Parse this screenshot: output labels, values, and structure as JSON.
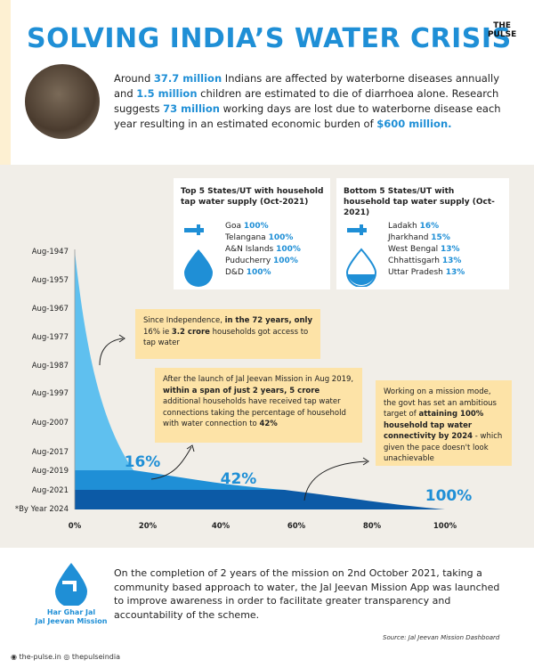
{
  "header": {
    "title": "SOLVING INDIA’S WATER CRISIS",
    "brand": [
      "THE",
      "PULSE"
    ]
  },
  "intro": [
    {
      "text": "Around "
    },
    {
      "text": "37.7 million",
      "hl": true
    },
    {
      "text": " Indians are affected by waterborne diseases annually and "
    },
    {
      "text": "1.5 million",
      "hl": true
    },
    {
      "text": " children are estimated to die of diarrhoea alone. Research suggests "
    },
    {
      "text": "73 million",
      "hl": true
    },
    {
      "text": " working days are lost due to waterborne disease each year resulting in an estimated economic burden of "
    },
    {
      "text": "$600 million.",
      "hl": true
    }
  ],
  "top_box": {
    "title": "Top 5 States/UT with household tap water supply (Oct-2021)",
    "items": [
      {
        "name": "Goa",
        "value": "100%"
      },
      {
        "name": "Telangana",
        "value": "100%"
      },
      {
        "name": "A&N Islands",
        "value": "100%"
      },
      {
        "name": "Puducherry",
        "value": "100%"
      },
      {
        "name": "D&D",
        "value": "100%"
      }
    ]
  },
  "bottom_box": {
    "title": "Bottom 5 States/UT with household tap water supply (Oct-2021)",
    "items": [
      {
        "name": "Ladakh",
        "value": "16%"
      },
      {
        "name": "Jharkhand",
        "value": "15%"
      },
      {
        "name": "West Bengal",
        "value": "13%"
      },
      {
        "name": "Chhattisgarh",
        "value": "13%"
      },
      {
        "name": "Uttar Pradesh",
        "value": "13%"
      }
    ]
  },
  "chart": {
    "y_labels": [
      "Aug-1947",
      "Aug-1957",
      "Aug-1967",
      "Aug-1977",
      "Aug-1987",
      "Aug-1997",
      "Aug-2007",
      "Aug-2017",
      "Aug-2019",
      "Aug-2021",
      "*By Year 2024"
    ],
    "x_labels": [
      "0%",
      "20%",
      "40%",
      "60%",
      "80%",
      "100%"
    ],
    "markers": [
      "16%",
      "42%",
      "100%"
    ]
  },
  "callouts": [
    [
      {
        "text": "Since Independence, "
      },
      {
        "text": "in the 72 years, only",
        "b": true
      },
      {
        "text": " 16% ie "
      },
      {
        "text": "3.2 crore",
        "b": true
      },
      {
        "text": " households got access to tap water"
      }
    ],
    [
      {
        "text": "After the launch of Jal Jeevan Mission in Aug 2019, "
      },
      {
        "text": "within a span of just 2 years, 5 crore",
        "b": true
      },
      {
        "text": " additional households have received tap water connections taking the percentage of household with water connection to "
      },
      {
        "text": "42%",
        "b": true
      }
    ],
    [
      {
        "text": "Working on a mission mode, the govt has set an ambitious target of "
      },
      {
        "text": "attaining 100% household tap water connectivity by 2024",
        "b": true
      },
      {
        "text": " - which given the pace doesn't look unachievable"
      }
    ]
  ],
  "footer": {
    "text": "On the completion of 2 years of the mission on 2nd October 2021, taking a community based approach to water, the Jal Jeevan Mission App was launched to improve awareness in order to facilitate greater transparency and accountability of the scheme.",
    "logo": [
      "Har Ghar Jal",
      "Jal Jeevan Mission"
    ],
    "source": "Source: Jal Jeevan Mission Dashboard",
    "social": [
      "the-pulse.in",
      "thepulseindia"
    ]
  }
}
